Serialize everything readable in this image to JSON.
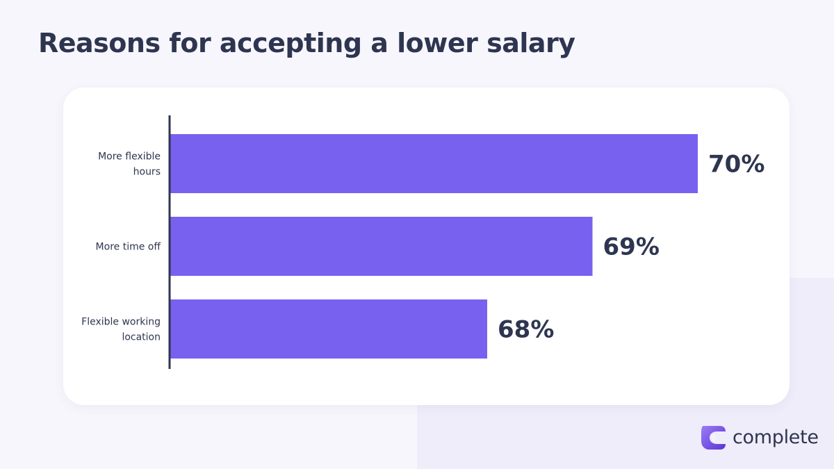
{
  "title": "Reasons for accepting a lower salary",
  "colors": {
    "bar": "#7961ef",
    "text": "#2e3550",
    "background": "#f7f6fc",
    "card": "#ffffff"
  },
  "chart_data": {
    "type": "bar",
    "orientation": "horizontal",
    "categories": [
      [
        "More flexible",
        "hours"
      ],
      [
        "More time off"
      ],
      [
        "Flexible working",
        "location"
      ]
    ],
    "values": [
      70,
      69,
      68
    ],
    "value_labels": [
      "70%",
      "69%",
      "68%"
    ],
    "axis_range_note": "bars truncated axis",
    "xlim": [
      63,
      70
    ],
    "grid": false,
    "legend": "none"
  },
  "brand": {
    "name": "complete",
    "logo_icon": "crescent-logo-icon"
  }
}
